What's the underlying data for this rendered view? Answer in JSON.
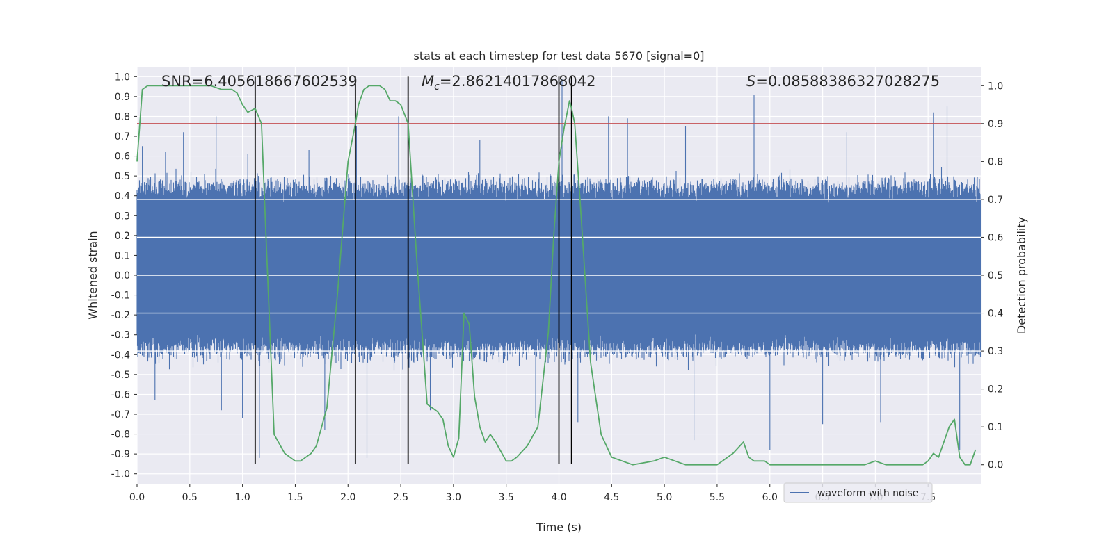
{
  "chart_data": {
    "type": "line",
    "title": "stats at each timestep for test data 5670 [signal=0]",
    "xlabel": "Time (s)",
    "ylabel": "Whitened strain",
    "y2label": "Detection probability",
    "xlim": [
      0.0,
      8.0
    ],
    "ylim": [
      -1.05,
      1.05
    ],
    "y2lim": [
      -0.05,
      1.05
    ],
    "xticks": [
      "0.0",
      "0.5",
      "1.0",
      "1.5",
      "2.0",
      "2.5",
      "3.0",
      "3.5",
      "4.0",
      "4.5",
      "5.0",
      "5.5",
      "6.0",
      "6.5",
      "7.0",
      "7.5"
    ],
    "yticks": [
      "1.0",
      "0.9",
      "0.8",
      "0.7",
      "0.6",
      "0.5",
      "0.4",
      "0.3",
      "0.2",
      "0.1",
      "0.0",
      "-0.1",
      "-0.2",
      "-0.3",
      "-0.4",
      "-0.5",
      "-0.6",
      "-0.7",
      "-0.8",
      "-0.9",
      "-1.0"
    ],
    "y2ticks": [
      "1.0",
      "0.9",
      "0.8",
      "0.7",
      "0.6",
      "0.5",
      "0.4",
      "0.3",
      "0.2",
      "0.1",
      "0.0"
    ],
    "grid": true,
    "legend": {
      "placement": "lower-right",
      "entries": [
        "waveform with noise"
      ]
    },
    "annotations": {
      "snr": "SNR=6.405618667602539",
      "mc_symbol": "M",
      "mc_sub": "c",
      "mc_value": "=2.86214017868042",
      "s_symbol": "S",
      "s_value": "=0.08588386327028275"
    },
    "threshold": {
      "axis": "y2",
      "value": 0.9,
      "color": "#c44e52"
    },
    "vertical_lines_x": [
      1.12,
      2.07,
      2.57,
      4.0,
      4.12
    ],
    "waveform_envelope": {
      "name": "waveform with noise",
      "color": "#4c72b0",
      "typical_range": [
        -0.35,
        0.42
      ],
      "peaks_max": [
        [
          0.05,
          0.65
        ],
        [
          0.27,
          0.62
        ],
        [
          0.44,
          0.72
        ],
        [
          0.75,
          0.8
        ],
        [
          1.05,
          0.61
        ],
        [
          1.63,
          0.63
        ],
        [
          2.08,
          0.75
        ],
        [
          2.48,
          0.8
        ],
        [
          3.25,
          0.68
        ],
        [
          4.03,
          0.99
        ],
        [
          4.47,
          0.8
        ],
        [
          4.65,
          0.79
        ],
        [
          5.2,
          0.75
        ],
        [
          5.85,
          0.91
        ],
        [
          6.73,
          0.72
        ],
        [
          7.55,
          0.82
        ],
        [
          7.68,
          0.85
        ]
      ],
      "peaks_min": [
        [
          0.17,
          -0.63
        ],
        [
          0.8,
          -0.68
        ],
        [
          1.0,
          -0.72
        ],
        [
          1.16,
          -0.92
        ],
        [
          1.78,
          -0.78
        ],
        [
          2.18,
          -0.92
        ],
        [
          2.78,
          -0.68
        ],
        [
          3.78,
          -0.72
        ],
        [
          4.18,
          -0.74
        ],
        [
          5.28,
          -0.83
        ],
        [
          6.0,
          -0.88
        ],
        [
          6.5,
          -0.75
        ],
        [
          7.05,
          -0.74
        ],
        [
          7.8,
          -0.88
        ]
      ]
    },
    "series": [
      {
        "name": "Detection probability",
        "axis": "y2",
        "color": "#55a868",
        "x": [
          0.0,
          0.05,
          0.1,
          0.2,
          0.3,
          0.4,
          0.5,
          0.6,
          0.7,
          0.8,
          0.9,
          0.95,
          1.0,
          1.05,
          1.12,
          1.18,
          1.22,
          1.3,
          1.4,
          1.5,
          1.55,
          1.6,
          1.65,
          1.7,
          1.8,
          1.9,
          2.0,
          2.07,
          2.1,
          2.15,
          2.2,
          2.25,
          2.3,
          2.35,
          2.4,
          2.45,
          2.5,
          2.57,
          2.65,
          2.75,
          2.85,
          2.9,
          2.95,
          3.0,
          3.05,
          3.1,
          3.15,
          3.2,
          3.25,
          3.3,
          3.35,
          3.4,
          3.5,
          3.55,
          3.6,
          3.7,
          3.8,
          3.9,
          3.95,
          4.0,
          4.05,
          4.1,
          4.12,
          4.15,
          4.2,
          4.3,
          4.4,
          4.5,
          4.6,
          4.7,
          4.9,
          5.0,
          5.1,
          5.2,
          5.3,
          5.4,
          5.5,
          5.55,
          5.65,
          5.75,
          5.8,
          5.85,
          5.9,
          5.95,
          6.0,
          6.1,
          6.3,
          6.5,
          6.7,
          6.9,
          7.0,
          7.1,
          7.3,
          7.45,
          7.5,
          7.55,
          7.6,
          7.65,
          7.7,
          7.75,
          7.8,
          7.85,
          7.9,
          7.95
        ],
        "y": [
          0.8,
          0.99,
          1.0,
          1.0,
          1.0,
          1.0,
          1.0,
          1.0,
          1.0,
          0.99,
          0.99,
          0.98,
          0.95,
          0.93,
          0.94,
          0.9,
          0.62,
          0.08,
          0.03,
          0.01,
          0.01,
          0.02,
          0.03,
          0.05,
          0.15,
          0.45,
          0.8,
          0.9,
          0.95,
          0.99,
          1.0,
          1.0,
          1.0,
          0.99,
          0.96,
          0.96,
          0.95,
          0.9,
          0.55,
          0.16,
          0.14,
          0.12,
          0.05,
          0.02,
          0.07,
          0.4,
          0.37,
          0.18,
          0.1,
          0.06,
          0.08,
          0.06,
          0.01,
          0.01,
          0.02,
          0.05,
          0.1,
          0.35,
          0.6,
          0.8,
          0.89,
          0.96,
          0.94,
          0.9,
          0.7,
          0.27,
          0.08,
          0.02,
          0.01,
          0.0,
          0.01,
          0.02,
          0.01,
          0.0,
          0.0,
          0.0,
          0.0,
          0.01,
          0.03,
          0.06,
          0.02,
          0.01,
          0.01,
          0.01,
          0.0,
          0.0,
          0.0,
          0.0,
          0.0,
          0.0,
          0.01,
          0.0,
          0.0,
          0.0,
          0.01,
          0.03,
          0.02,
          0.06,
          0.1,
          0.12,
          0.02,
          0.0,
          0.0,
          0.04
        ]
      }
    ]
  }
}
